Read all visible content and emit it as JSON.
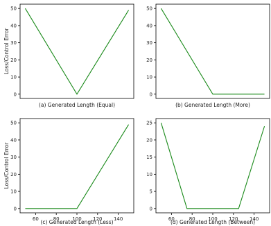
{
  "chart_data": [
    {
      "type": "line",
      "title": "",
      "caption": "(a) Generated Length (Equal)",
      "xlabel": "",
      "ylabel": "Loss/Control Error",
      "xlim": [
        45,
        155
      ],
      "ylim": [
        -2.5,
        52.5
      ],
      "xticks": [],
      "yticks": [
        0,
        10,
        20,
        30,
        40,
        50
      ],
      "x": [
        50,
        100,
        150
      ],
      "y": [
        50,
        0,
        49
      ],
      "color": "#1a8a1a"
    },
    {
      "type": "line",
      "title": "",
      "caption": "(b) Generated Length (More)",
      "xlabel": "",
      "ylabel": "",
      "xlim": [
        45,
        155
      ],
      "ylim": [
        -2.5,
        52.5
      ],
      "xticks": [],
      "yticks": [
        0,
        10,
        20,
        30,
        40,
        50
      ],
      "x": [
        50,
        100,
        150
      ],
      "y": [
        50,
        0,
        0
      ],
      "color": "#1a8a1a"
    },
    {
      "type": "line",
      "title": "",
      "caption": "(c) Generated Length (Less)",
      "xlabel": "",
      "ylabel": "Loss/Control Error",
      "xlim": [
        45,
        155
      ],
      "ylim": [
        -2.5,
        52.5
      ],
      "xticks": [
        60,
        80,
        100,
        120,
        140
      ],
      "yticks": [
        0,
        10,
        20,
        30,
        40,
        50
      ],
      "x": [
        50,
        100,
        150
      ],
      "y": [
        0,
        0,
        49
      ],
      "color": "#1a8a1a"
    },
    {
      "type": "line",
      "title": "",
      "caption": "(d) Generated Length (Between)",
      "xlabel": "",
      "ylabel": "",
      "xlim": [
        45,
        155
      ],
      "ylim": [
        -1.25,
        26.25
      ],
      "xticks": [
        60,
        80,
        100,
        120,
        140
      ],
      "yticks": [
        0,
        5,
        10,
        15,
        20,
        25
      ],
      "x": [
        50,
        75,
        125,
        150
      ],
      "y": [
        25,
        0,
        0,
        24
      ],
      "color": "#1a8a1a"
    }
  ]
}
